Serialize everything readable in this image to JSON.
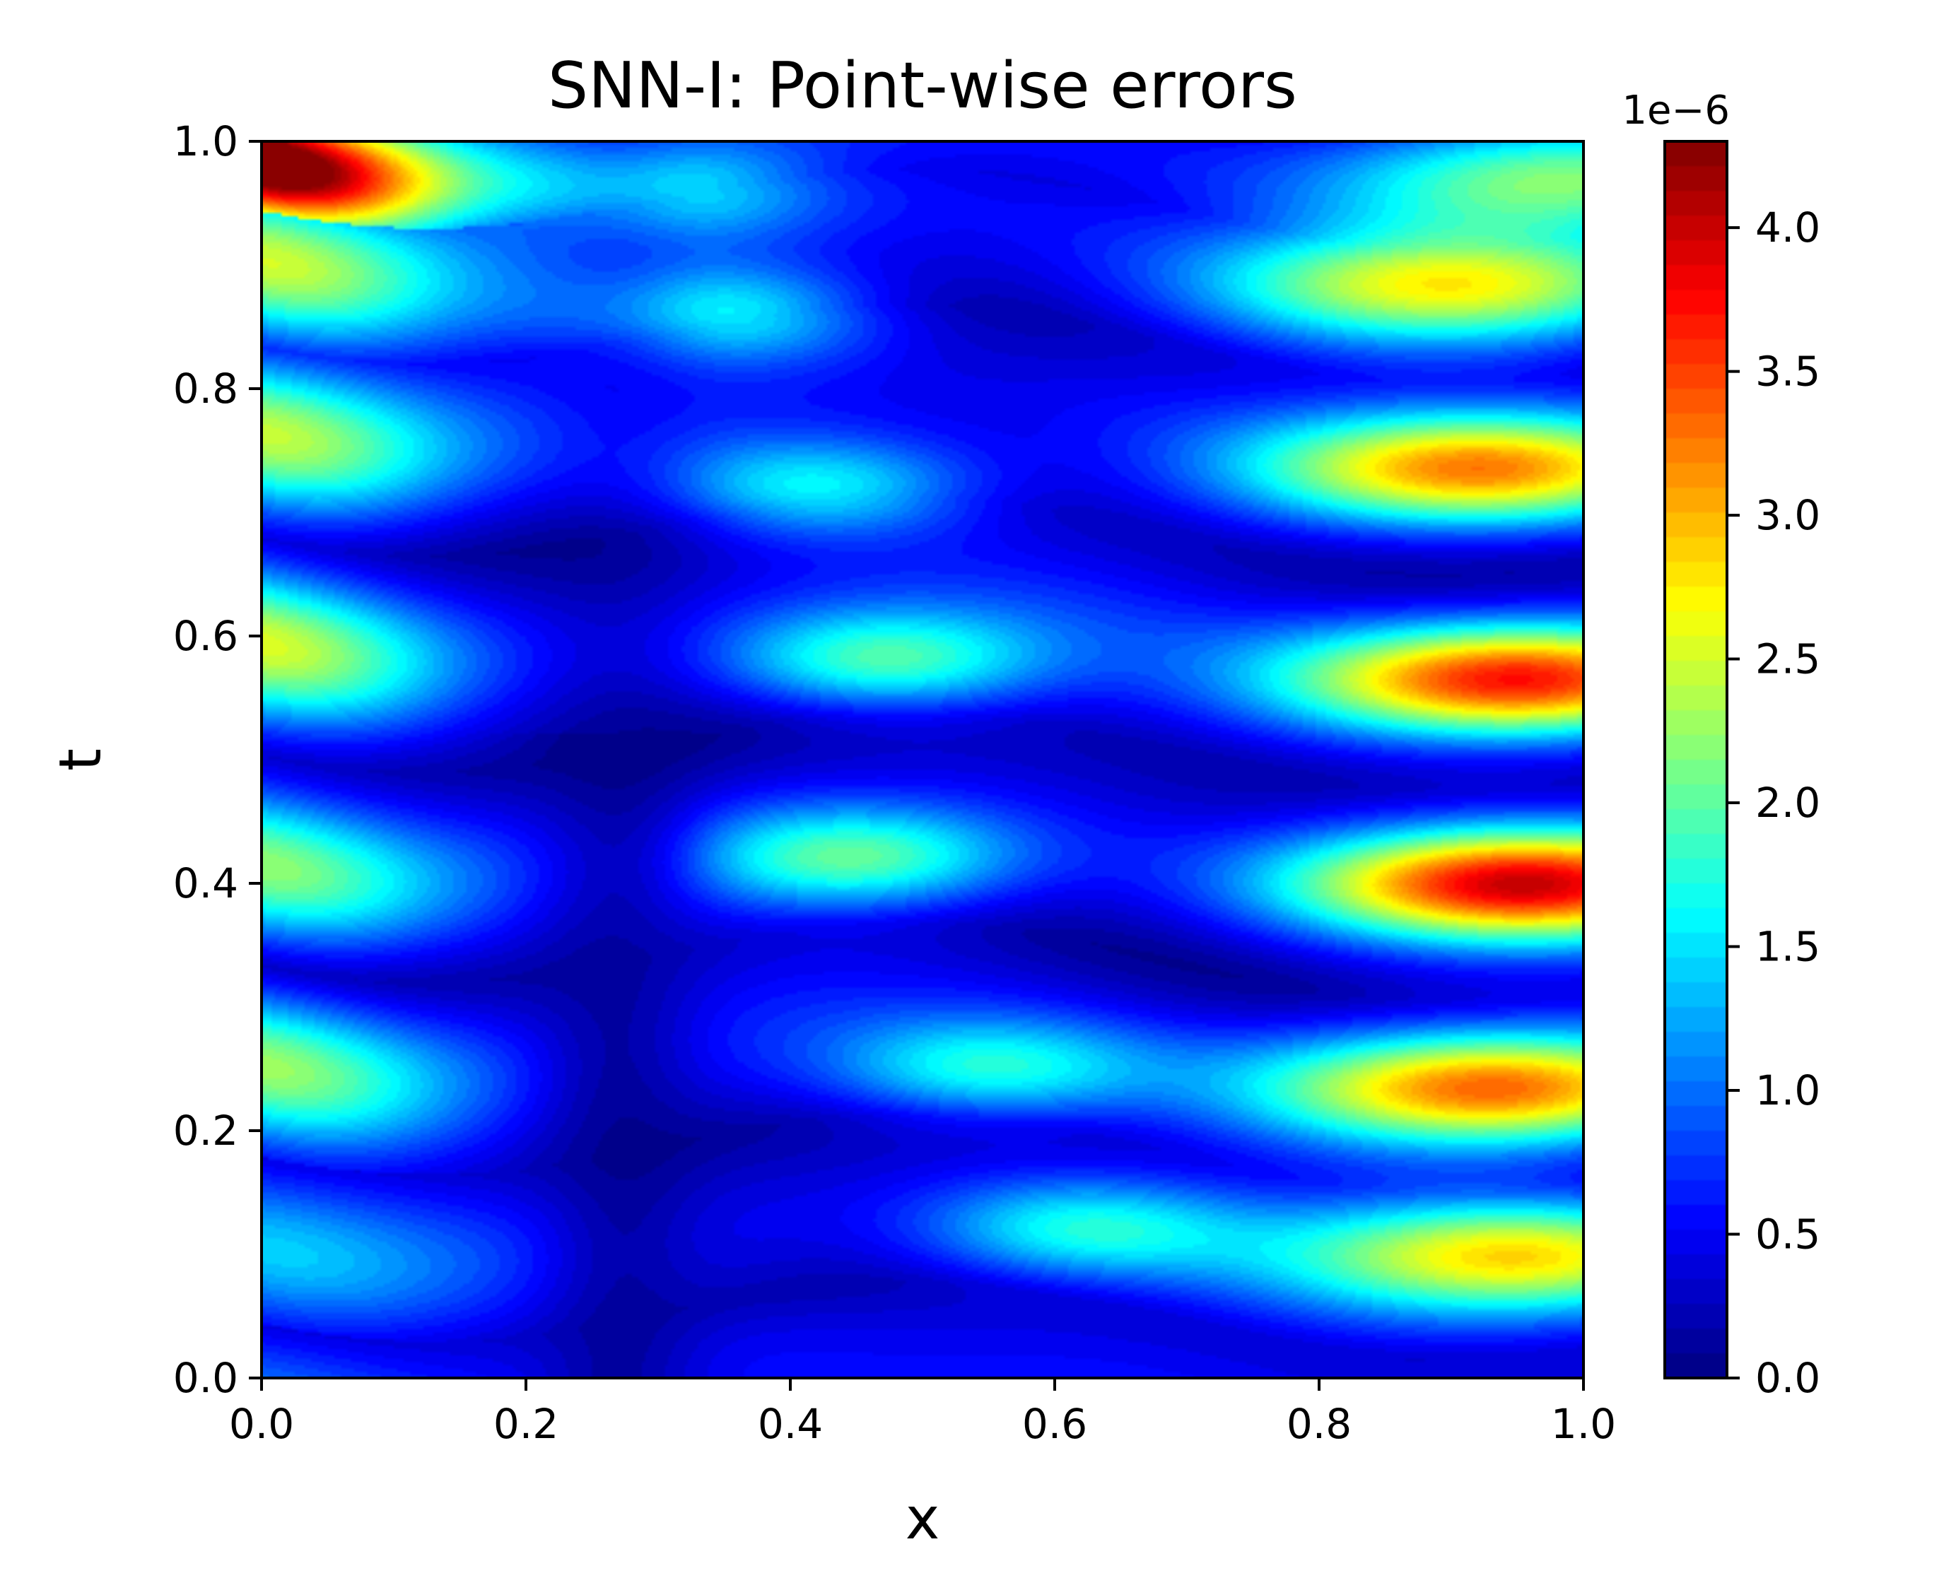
{
  "chart_data": {
    "type": "heatmap",
    "subtype": "filled-contour",
    "title": "SNN-I: Point-wise errors",
    "xlabel": "x",
    "ylabel": "t",
    "xlim": [
      0.0,
      1.0
    ],
    "ylim": [
      0.0,
      1.0
    ],
    "x_ticks": [
      0.0,
      0.2,
      0.4,
      0.6,
      0.8,
      1.0
    ],
    "y_ticks": [
      0.0,
      0.2,
      0.4,
      0.6,
      0.8,
      1.0
    ],
    "x_tick_labels": [
      "0.0",
      "0.2",
      "0.4",
      "0.6",
      "0.8",
      "1.0"
    ],
    "y_tick_labels": [
      "0.0",
      "0.2",
      "0.4",
      "0.6",
      "0.8",
      "1.0"
    ],
    "colormap": "jet",
    "colorbar": {
      "offset_text": "1e−6",
      "range": [
        0.0,
        4.3
      ],
      "ticks": [
        0.0,
        0.5,
        1.0,
        1.5,
        2.0,
        2.5,
        3.0,
        3.5,
        4.0
      ],
      "tick_labels": [
        "0.0",
        "0.5",
        "1.0",
        "1.5",
        "2.0",
        "2.5",
        "3.0",
        "3.5",
        "4.0"
      ],
      "levels": 50
    },
    "grid": false,
    "value_model": {
      "band_centers_t": [
        0.0,
        0.12,
        0.27,
        0.43,
        0.61,
        0.78,
        0.92,
        1.0
      ],
      "left_amplitudes": [
        0.5,
        0.8,
        1.75,
        1.8,
        1.9,
        1.9,
        1.9,
        4.3
      ],
      "right_peaks": [
        {
          "t": 0.1,
          "x": 0.95,
          "value": 2.3
        },
        {
          "t": 0.235,
          "x": 0.93,
          "value": 2.8
        },
        {
          "t": 0.4,
          "x": 0.95,
          "value": 3.4
        },
        {
          "t": 0.565,
          "x": 0.95,
          "value": 3.3
        },
        {
          "t": 0.735,
          "x": 0.92,
          "value": 2.7
        },
        {
          "t": 0.885,
          "x": 0.9,
          "value": 2.1
        },
        {
          "t": 0.97,
          "x": 0.98,
          "value": 1.6
        }
      ],
      "middle_peaks": [
        {
          "x": 0.47,
          "t": 0.58,
          "value": 1.55
        },
        {
          "x": 0.45,
          "t": 0.42,
          "value": 1.5
        },
        {
          "x": 0.42,
          "t": 0.72,
          "value": 1.4
        },
        {
          "x": 0.35,
          "t": 0.86,
          "value": 1.4
        },
        {
          "x": 0.3,
          "t": 0.96,
          "value": 1.2
        },
        {
          "x": 0.55,
          "t": 0.25,
          "value": 1.3
        },
        {
          "x": 0.62,
          "t": 0.12,
          "value": 1.2
        }
      ],
      "max_value": 4.3
    }
  }
}
